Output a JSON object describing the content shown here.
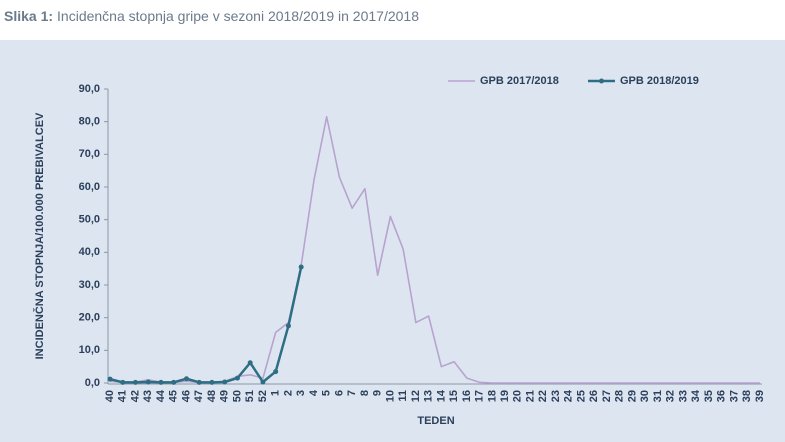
{
  "chart_data": {
    "type": "line",
    "caption_label": "Slika 1:",
    "title": "Incidenčna stopnja gripe v sezoni 2018/2019 in 2017/2018",
    "x_label": "TEDEN",
    "y_label": "INCIDENČNA STOPNJA/100.000 PREBIVALCEV",
    "categories": [
      "40",
      "41",
      "42",
      "43",
      "44",
      "45",
      "46",
      "47",
      "48",
      "49",
      "50",
      "51",
      "52",
      "1",
      "2",
      "3",
      "4",
      "5",
      "6",
      "7",
      "8",
      "9",
      "10",
      "11",
      "12",
      "13",
      "14",
      "15",
      "16",
      "17",
      "18",
      "19",
      "20",
      "21",
      "22",
      "23",
      "24",
      "25",
      "26",
      "27",
      "28",
      "29",
      "30",
      "31",
      "32",
      "33",
      "34",
      "35",
      "36",
      "37",
      "38",
      "39"
    ],
    "series": [
      {
        "name": "GPB 2017/2018",
        "color": "#b8a3cf",
        "markers": false,
        "values": [
          0.5,
          0.2,
          0.3,
          1.0,
          0.3,
          0.2,
          0.5,
          0.2,
          0.2,
          0.5,
          2.0,
          2.5,
          1.5,
          15.5,
          18.5,
          36,
          62,
          81.5,
          63,
          53.5,
          59.5,
          33,
          51,
          41,
          18.5,
          20.5,
          5,
          6.5,
          1.5,
          0.2,
          0,
          0,
          0,
          0,
          0,
          0,
          0,
          0,
          0,
          0,
          0,
          0,
          0,
          0,
          0,
          0,
          0,
          0,
          0,
          0,
          0,
          0
        ]
      },
      {
        "name": "GPB 2018/2019",
        "color": "#2e6e84",
        "markers": true,
        "values": [
          1.2,
          0.2,
          0.2,
          0.3,
          0.2,
          0.2,
          1.3,
          0.2,
          0.2,
          0.3,
          1.5,
          6.2,
          0.3,
          3.5,
          17.5,
          35.5,
          null,
          null,
          null,
          null,
          null,
          null,
          null,
          null,
          null,
          null,
          null,
          null,
          null,
          null,
          null,
          null,
          null,
          null,
          null,
          null,
          null,
          null,
          null,
          null,
          null,
          null,
          null,
          null,
          null,
          null,
          null,
          null,
          null,
          null,
          null,
          null
        ]
      }
    ],
    "ylim": [
      0,
      90
    ],
    "yticks": [
      {
        "value": 0,
        "label": "0,0"
      },
      {
        "value": 10,
        "label": "10,0"
      },
      {
        "value": 20,
        "label": "20,0"
      },
      {
        "value": 30,
        "label": "30,0"
      },
      {
        "value": 40,
        "label": "40,0"
      },
      {
        "value": 50,
        "label": "50,0"
      },
      {
        "value": 60,
        "label": "60,0"
      },
      {
        "value": 70,
        "label": "70,0"
      },
      {
        "value": 80,
        "label": "80,0"
      },
      {
        "value": 90,
        "label": "90,0"
      }
    ],
    "grid": false,
    "legend": "top-right"
  }
}
